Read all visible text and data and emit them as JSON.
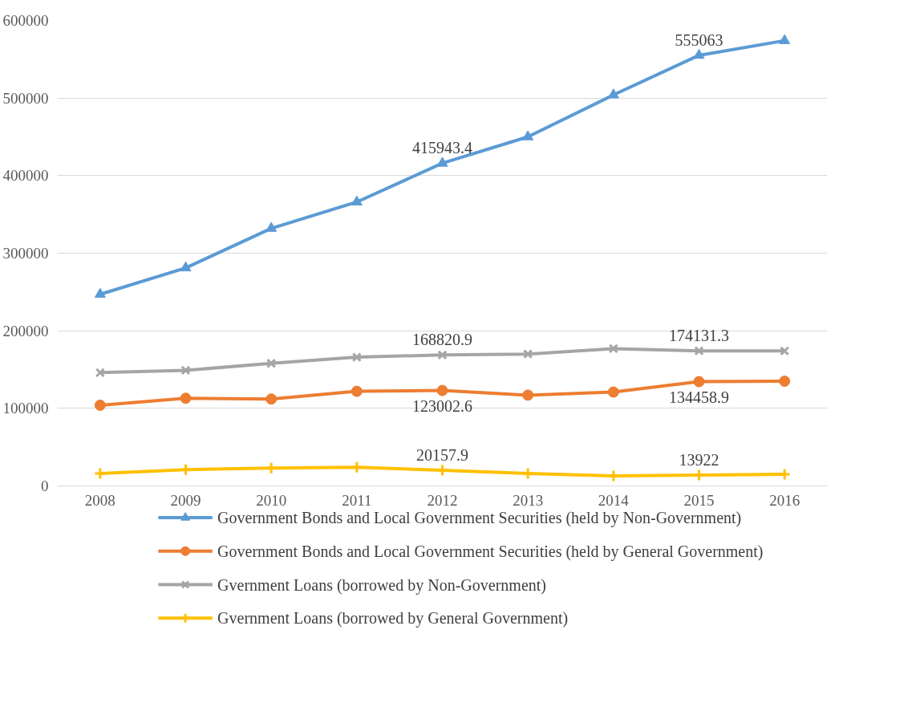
{
  "chart_data": {
    "type": "line",
    "categories": [
      "2008",
      "2009",
      "2010",
      "2011",
      "2012",
      "2013",
      "2014",
      "2015",
      "2016"
    ],
    "ylim": [
      0,
      600000
    ],
    "yticks": [
      0,
      100000,
      200000,
      300000,
      400000,
      500000,
      600000
    ],
    "grid": "y",
    "legend": "bottom",
    "line_style": "solid",
    "series": [
      {
        "name": "Government Bonds and Local Government Securities (held by Non-Government)",
        "color": "#5b9bd5",
        "marker": "triangle",
        "values": [
          247000,
          281000,
          332000,
          366000,
          415943.4,
          450000,
          504000,
          555063,
          574000
        ],
        "value_labels": [
          null,
          null,
          null,
          null,
          "415943.4",
          null,
          null,
          "555063",
          null
        ]
      },
      {
        "name": "Government Bonds and Local Government Securities (held by General Government)",
        "color": "#ed7d31",
        "marker": "circle",
        "values": [
          104000,
          113000,
          112000,
          122000,
          123002.6,
          117000,
          121000,
          134458.9,
          135000
        ],
        "value_labels": [
          null,
          null,
          null,
          null,
          "123002.6",
          null,
          null,
          "134458.9",
          null
        ]
      },
      {
        "name": "Gvernment Loans (borrowed by Non-Government)",
        "color": "#a5a5a5",
        "marker": "cross",
        "values": [
          146000,
          149000,
          158000,
          166000,
          168820.9,
          170000,
          177000,
          174131.3,
          174000
        ],
        "value_labels": [
          null,
          null,
          null,
          null,
          "168820.9",
          null,
          null,
          "174131.3",
          null
        ]
      },
      {
        "name": "Gvernment Loans (borrowed by General Government)",
        "color": "#ffc000",
        "marker": "plus",
        "values": [
          16000,
          21000,
          23000,
          24000,
          20157.9,
          16000,
          13000,
          13922,
          15000
        ],
        "value_labels": [
          null,
          null,
          null,
          null,
          "20157.9",
          null,
          null,
          "13922",
          null
        ]
      }
    ]
  }
}
